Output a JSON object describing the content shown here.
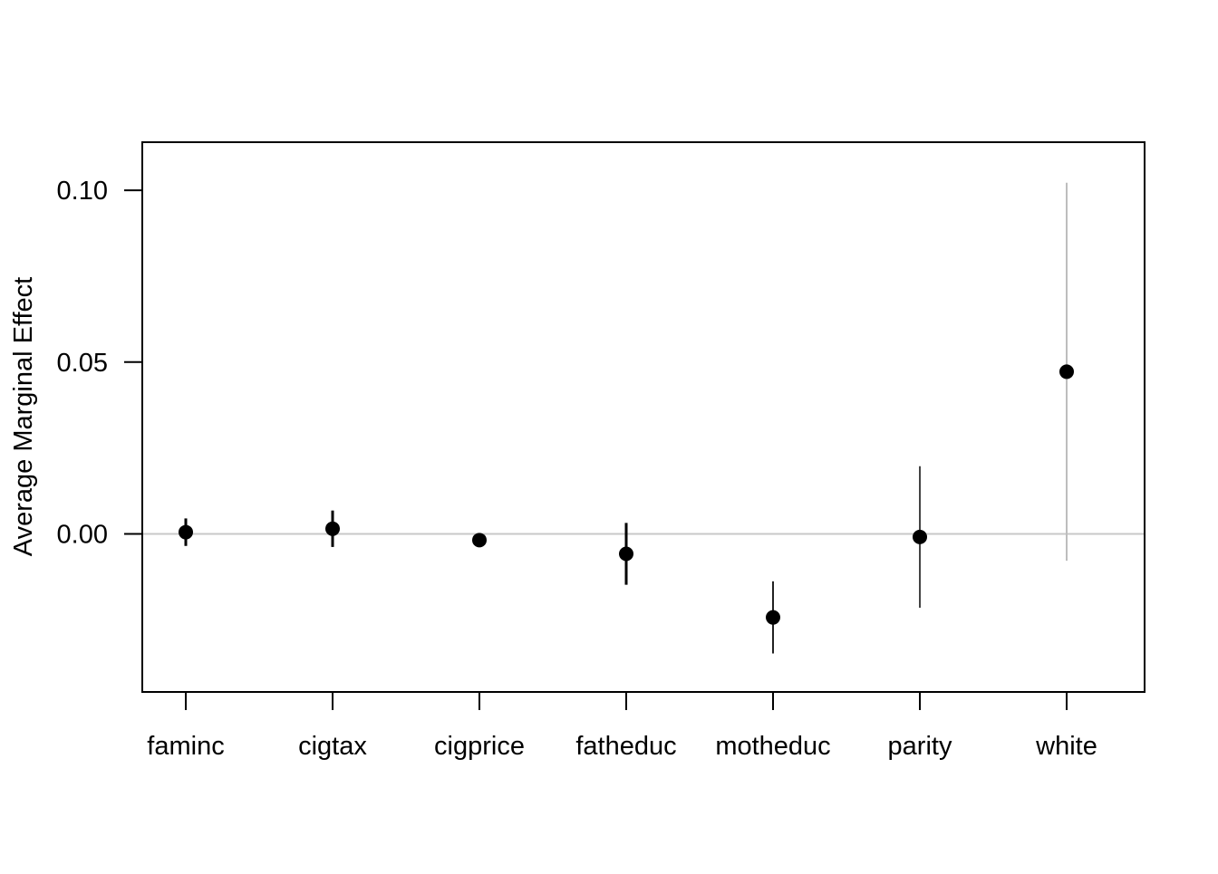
{
  "chart_data": {
    "type": "scatter",
    "title": "",
    "xlabel": "",
    "ylabel": "Average Marginal Effect",
    "categories": [
      "faminc",
      "cigtax",
      "cigprice",
      "fatheduc",
      "motheduc",
      "parity",
      "white"
    ],
    "estimates": [
      0.0005,
      0.0015,
      -0.0018,
      -0.0058,
      -0.0243,
      -0.0009,
      0.0472
    ],
    "ci_lower": [
      -0.0035,
      -0.0038,
      -0.0022,
      -0.0148,
      -0.0348,
      -0.0215,
      -0.0078
    ],
    "ci_upper": [
      0.0045,
      0.0068,
      -0.0014,
      0.0032,
      -0.0138,
      0.0197,
      0.1022
    ],
    "ci_colors": [
      "#000000",
      "#000000",
      "#000000",
      "#000000",
      "#222222",
      "#444444",
      "#bdbdbd"
    ],
    "ylim": [
      -0.046,
      0.114
    ],
    "yticks": [
      0.0,
      0.05,
      0.1
    ],
    "ytick_labels": [
      "0.00",
      "0.05",
      "0.10"
    ],
    "reference_line": 0,
    "reference_line_color": "#c8c8c8",
    "point_color": "#000000",
    "grid": false,
    "legend": "none"
  }
}
